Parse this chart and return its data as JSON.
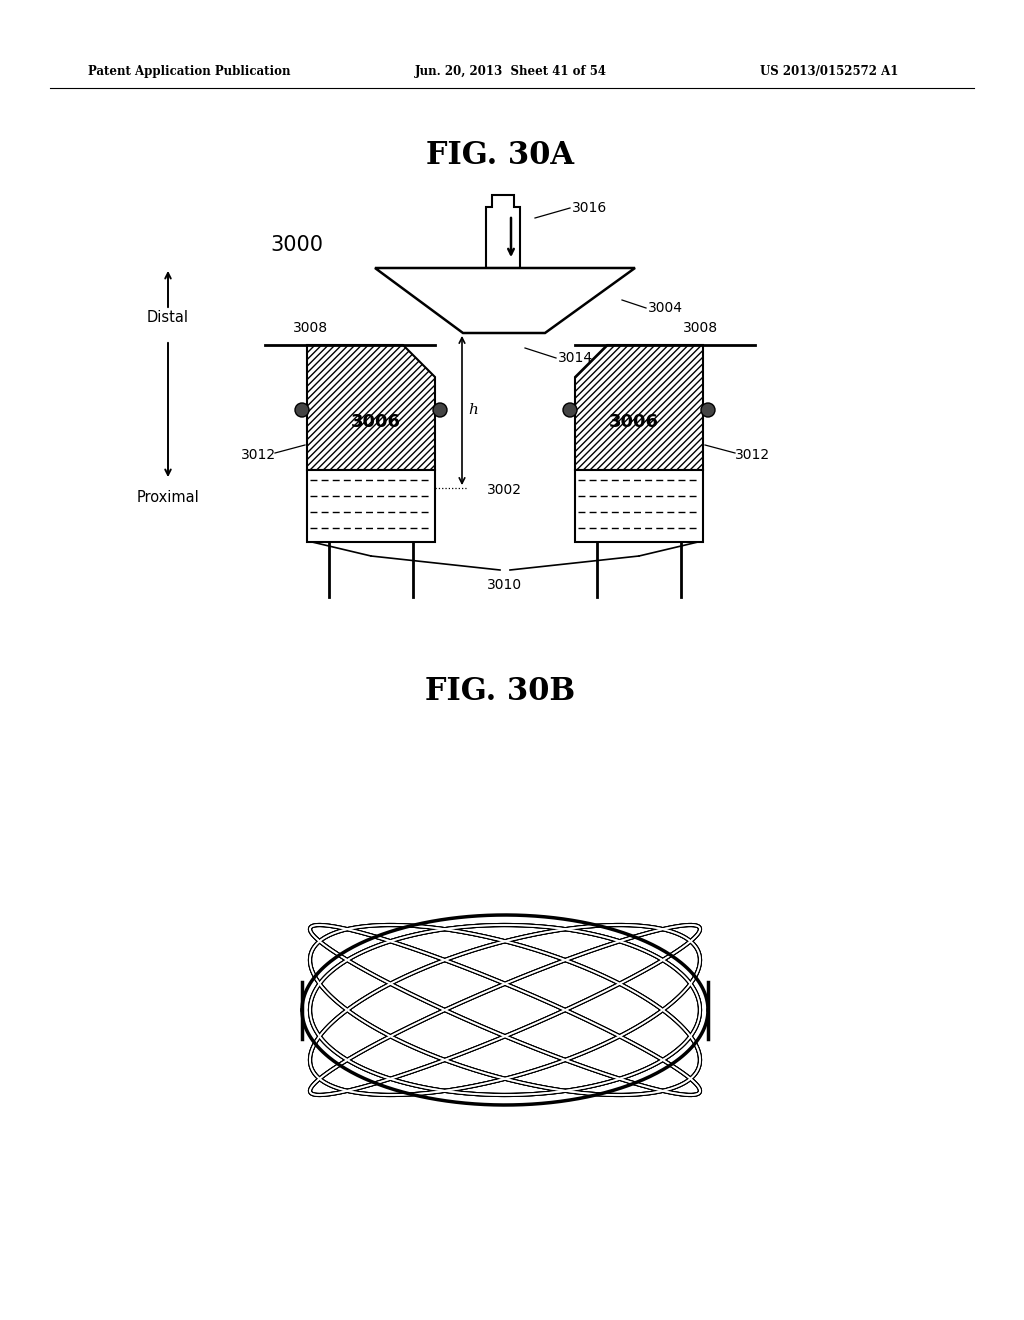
{
  "header_left": "Patent Application Publication",
  "header_mid": "Jun. 20, 2013  Sheet 41 of 54",
  "header_right": "US 2013/0152572 A1",
  "fig_30a_title": "FIG. 30A",
  "fig_30b_title": "FIG. 30B",
  "label_3000": "3000",
  "label_3002": "3002",
  "label_3004": "3004",
  "label_3006": "3006",
  "label_3008_left": "3008",
  "label_3008_right": "3008",
  "label_3010": "3010",
  "label_3012_left": "3012",
  "label_3012_right": "3012",
  "label_3014": "3014",
  "label_3016": "3016",
  "label_h": "h",
  "label_distal": "Distal",
  "label_proximal": "Proximal",
  "bg_color": "#ffffff",
  "line_color": "#000000",
  "text_color": "#000000"
}
